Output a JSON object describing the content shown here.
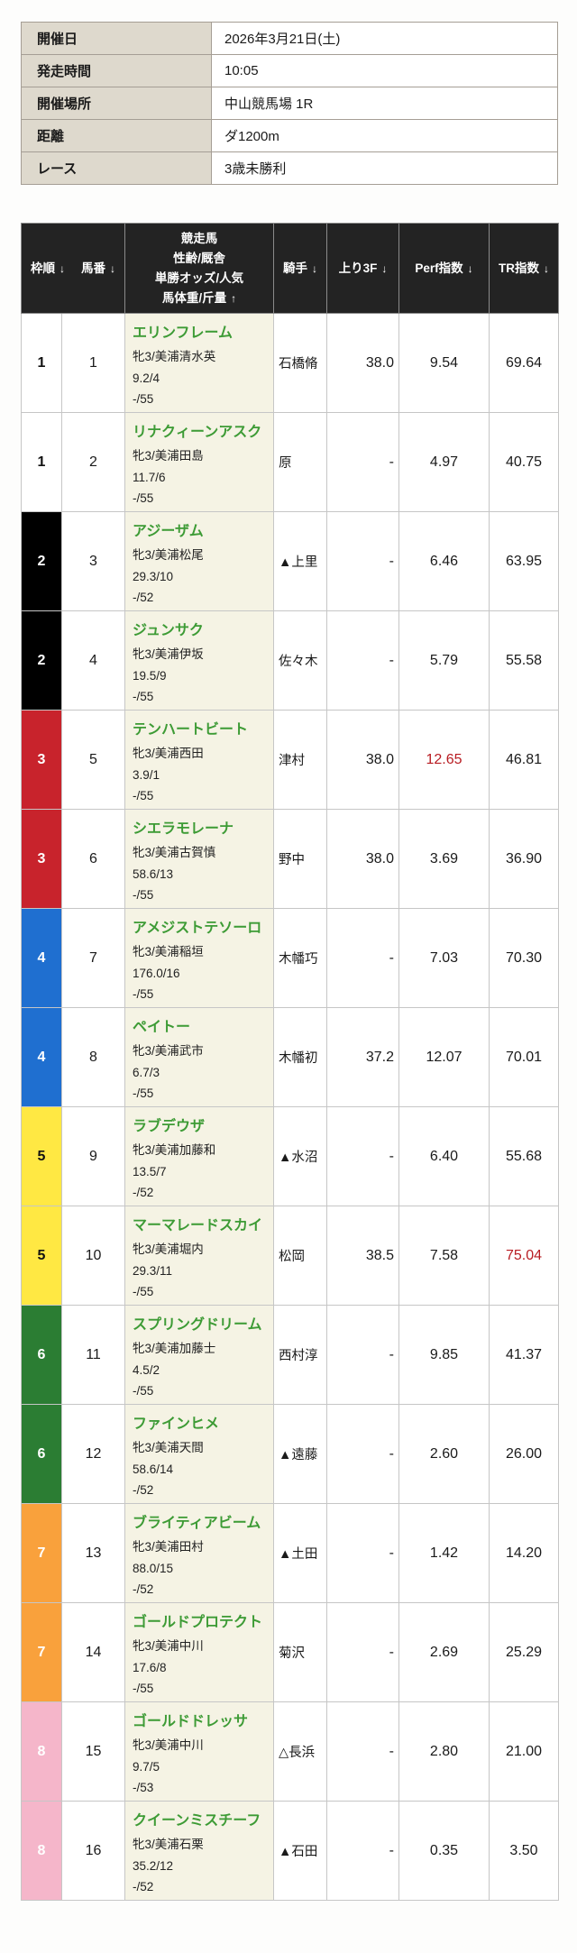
{
  "palette": {
    "highlight_red": "#b81c22",
    "horse_name_green": "#3d9b35",
    "header_bg": "#232323",
    "info_label_bg": "#ded9cd",
    "horse_cell_bg": "#f5f3e4"
  },
  "race_info": {
    "rows": [
      {
        "label": "開催日",
        "value": "2026年3月21日(土)"
      },
      {
        "label": "発走時間",
        "value": "10:05"
      },
      {
        "label": "開催場所",
        "value": "中山競馬場 1R"
      },
      {
        "label": "距離",
        "value": "ダ1200m"
      },
      {
        "label": "レース",
        "value": "3歳未勝利"
      }
    ]
  },
  "entries": {
    "header": {
      "frame_label": "枠順",
      "number_label": "馬番",
      "horse_lines": [
        "競走馬",
        "性齢/厩舎",
        "単勝オッズ/人気",
        "馬体重/斤量"
      ],
      "jockey_label": "騎手",
      "agari_label": "上り3F",
      "perf_label": "Perf指数",
      "tr_label": "TR指数",
      "sort_down_icon": "↓",
      "sort_up_icon": "↑"
    },
    "rows": [
      {
        "frame": "1",
        "frame_color": "#ffffff",
        "frame_text_color": "#111111",
        "number": "1",
        "name": "エリンフレーム",
        "sex_age_stable": "牝3/美浦清水英",
        "odds_popularity": "9.2/4",
        "weight_load": "-/55",
        "jockey": "石橋脩",
        "agari_3f": "38.0",
        "perf": "9.54",
        "perf_hot": false,
        "tr": "69.64",
        "tr_hot": false
      },
      {
        "frame": "1",
        "frame_color": "#ffffff",
        "frame_text_color": "#111111",
        "number": "2",
        "name": "リナクィーンアスク",
        "sex_age_stable": "牝3/美浦田島",
        "odds_popularity": "11.7/6",
        "weight_load": "-/55",
        "jockey": "原",
        "agari_3f": "-",
        "perf": "4.97",
        "perf_hot": false,
        "tr": "40.75",
        "tr_hot": false
      },
      {
        "frame": "2",
        "frame_color": "#000000",
        "frame_text_color": "#ffffff",
        "number": "3",
        "name": "アジーザム",
        "sex_age_stable": "牝3/美浦松尾",
        "odds_popularity": "29.3/10",
        "weight_load": "-/52",
        "jockey": "▲上里",
        "agari_3f": "-",
        "perf": "6.46",
        "perf_hot": false,
        "tr": "63.95",
        "tr_hot": false
      },
      {
        "frame": "2",
        "frame_color": "#000000",
        "frame_text_color": "#ffffff",
        "number": "4",
        "name": "ジュンサク",
        "sex_age_stable": "牝3/美浦伊坂",
        "odds_popularity": "19.5/9",
        "weight_load": "-/55",
        "jockey": "佐々木",
        "agari_3f": "-",
        "perf": "5.79",
        "perf_hot": false,
        "tr": "55.58",
        "tr_hot": false
      },
      {
        "frame": "3",
        "frame_color": "#c8232c",
        "frame_text_color": "#ffffff",
        "number": "5",
        "name": "テンハートビート",
        "sex_age_stable": "牝3/美浦西田",
        "odds_popularity": "3.9/1",
        "weight_load": "-/55",
        "jockey": "津村",
        "agari_3f": "38.0",
        "perf": "12.65",
        "perf_hot": true,
        "tr": "46.81",
        "tr_hot": false
      },
      {
        "frame": "3",
        "frame_color": "#c8232c",
        "frame_text_color": "#ffffff",
        "number": "6",
        "name": "シエラモレーナ",
        "sex_age_stable": "牝3/美浦古賀慎",
        "odds_popularity": "58.6/13",
        "weight_load": "-/55",
        "jockey": "野中",
        "agari_3f": "38.0",
        "perf": "3.69",
        "perf_hot": false,
        "tr": "36.90",
        "tr_hot": false
      },
      {
        "frame": "4",
        "frame_color": "#1f6fd0",
        "frame_text_color": "#ffffff",
        "number": "7",
        "name": "アメジストテソーロ",
        "sex_age_stable": "牝3/美浦稲垣",
        "odds_popularity": "176.0/16",
        "weight_load": "-/55",
        "jockey": "木幡巧",
        "agari_3f": "-",
        "perf": "7.03",
        "perf_hot": false,
        "tr": "70.30",
        "tr_hot": false
      },
      {
        "frame": "4",
        "frame_color": "#1f6fd0",
        "frame_text_color": "#ffffff",
        "number": "8",
        "name": "ペイトー",
        "sex_age_stable": "牝3/美浦武市",
        "odds_popularity": "6.7/3",
        "weight_load": "-/55",
        "jockey": "木幡初",
        "agari_3f": "37.2",
        "perf": "12.07",
        "perf_hot": false,
        "tr": "70.01",
        "tr_hot": false
      },
      {
        "frame": "5",
        "frame_color": "#ffe843",
        "frame_text_color": "#111111",
        "number": "9",
        "name": "ラブデウザ",
        "sex_age_stable": "牝3/美浦加藤和",
        "odds_popularity": "13.5/7",
        "weight_load": "-/52",
        "jockey": "▲水沼",
        "agari_3f": "-",
        "perf": "6.40",
        "perf_hot": false,
        "tr": "55.68",
        "tr_hot": false
      },
      {
        "frame": "5",
        "frame_color": "#ffe843",
        "frame_text_color": "#111111",
        "number": "10",
        "name": "マーマレードスカイ",
        "sex_age_stable": "牝3/美浦堀内",
        "odds_popularity": "29.3/11",
        "weight_load": "-/55",
        "jockey": "松岡",
        "agari_3f": "38.5",
        "perf": "7.58",
        "perf_hot": false,
        "tr": "75.04",
        "tr_hot": true
      },
      {
        "frame": "6",
        "frame_color": "#2b7d33",
        "frame_text_color": "#ffffff",
        "number": "11",
        "name": "スプリングドリーム",
        "sex_age_stable": "牝3/美浦加藤士",
        "odds_popularity": "4.5/2",
        "weight_load": "-/55",
        "jockey": "西村淳",
        "agari_3f": "-",
        "perf": "9.85",
        "perf_hot": false,
        "tr": "41.37",
        "tr_hot": false
      },
      {
        "frame": "6",
        "frame_color": "#2b7d33",
        "frame_text_color": "#ffffff",
        "number": "12",
        "name": "ファインヒメ",
        "sex_age_stable": "牝3/美浦天間",
        "odds_popularity": "58.6/14",
        "weight_load": "-/52",
        "jockey": "▲遠藤",
        "agari_3f": "-",
        "perf": "2.60",
        "perf_hot": false,
        "tr": "26.00",
        "tr_hot": false
      },
      {
        "frame": "7",
        "frame_color": "#f9a13c",
        "frame_text_color": "#ffffff",
        "number": "13",
        "name": "ブライティアビーム",
        "sex_age_stable": "牝3/美浦田村",
        "odds_popularity": "88.0/15",
        "weight_load": "-/52",
        "jockey": "▲土田",
        "agari_3f": "-",
        "perf": "1.42",
        "perf_hot": false,
        "tr": "14.20",
        "tr_hot": false
      },
      {
        "frame": "7",
        "frame_color": "#f9a13c",
        "frame_text_color": "#ffffff",
        "number": "14",
        "name": "ゴールドプロテクト",
        "sex_age_stable": "牝3/美浦中川",
        "odds_popularity": "17.6/8",
        "weight_load": "-/55",
        "jockey": "菊沢",
        "agari_3f": "-",
        "perf": "2.69",
        "perf_hot": false,
        "tr": "25.29",
        "tr_hot": false
      },
      {
        "frame": "8",
        "frame_color": "#f5b6ca",
        "frame_text_color": "#ffffff",
        "number": "15",
        "name": "ゴールドドレッサ",
        "sex_age_stable": "牝3/美浦中川",
        "odds_popularity": "9.7/5",
        "weight_load": "-/53",
        "jockey": "△長浜",
        "agari_3f": "-",
        "perf": "2.80",
        "perf_hot": false,
        "tr": "21.00",
        "tr_hot": false
      },
      {
        "frame": "8",
        "frame_color": "#f5b6ca",
        "frame_text_color": "#ffffff",
        "number": "16",
        "name": "クイーンミスチーフ",
        "sex_age_stable": "牝3/美浦石栗",
        "odds_popularity": "35.2/12",
        "weight_load": "-/52",
        "jockey": "▲石田",
        "agari_3f": "-",
        "perf": "0.35",
        "perf_hot": false,
        "tr": "3.50",
        "tr_hot": false
      }
    ]
  }
}
